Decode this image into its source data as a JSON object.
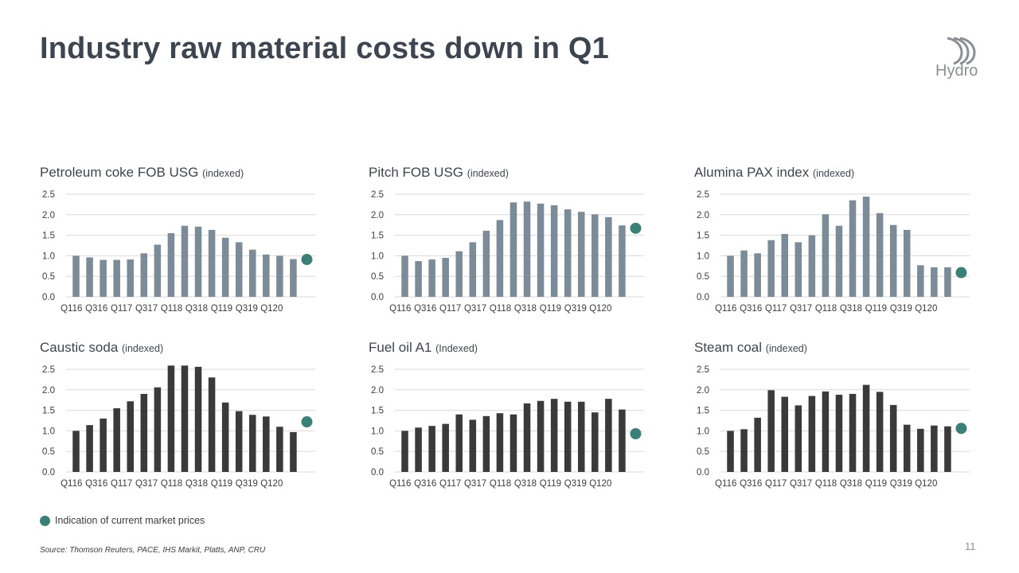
{
  "slide": {
    "title": "Industry raw material costs down in Q1",
    "logo_text": "Hydro",
    "legend_label": "Indication of current market prices",
    "source": "Source: Thomson Reuters, PACE, IHS Markit, Platts, ANP, CRU",
    "page_number": "11"
  },
  "colors": {
    "title": "#3d4550",
    "bar_light": "#7b8b98",
    "bar_dark": "#3a3a3a",
    "marker": "#3b8077",
    "gridline": "#d9d9d9",
    "text": "#3c3c3c"
  },
  "chart_data": [
    {
      "type": "bar",
      "title": "Petroleum coke FOB USG",
      "subtitle": "(indexed)",
      "bar_color": "#7b8b98",
      "x_tick_labels": [
        "Q116",
        "Q316",
        "Q117",
        "Q317",
        "Q118",
        "Q318",
        "Q119",
        "Q319",
        "Q120"
      ],
      "values": [
        1.0,
        0.96,
        0.9,
        0.9,
        0.91,
        1.06,
        1.27,
        1.55,
        1.73,
        1.71,
        1.63,
        1.44,
        1.33,
        1.15,
        1.03,
        1.0,
        0.92
      ],
      "current_marker": 0.91,
      "ylim": [
        0,
        2.5
      ],
      "y_ticks": [
        "0.0",
        "0.5",
        "1.0",
        "1.5",
        "2.0",
        "2.5"
      ],
      "grid": true
    },
    {
      "type": "bar",
      "title": "Pitch FOB USG",
      "subtitle": "(indexed)",
      "bar_color": "#7b8b98",
      "x_tick_labels": [
        "Q116",
        "Q316",
        "Q117",
        "Q317",
        "Q118",
        "Q318",
        "Q119",
        "Q319",
        "Q120"
      ],
      "values": [
        1.0,
        0.87,
        0.91,
        0.95,
        1.11,
        1.33,
        1.61,
        1.87,
        2.3,
        2.32,
        2.27,
        2.23,
        2.13,
        2.07,
        2.01,
        1.94,
        1.74
      ],
      "current_marker": 1.67,
      "ylim": [
        0,
        2.5
      ],
      "y_ticks": [
        "0.0",
        "0.5",
        "1.0",
        "1.5",
        "2.0",
        "2.5"
      ],
      "grid": true
    },
    {
      "type": "bar",
      "title": "Alumina PAX index",
      "subtitle": "(indexed)",
      "bar_color": "#7b8b98",
      "x_tick_labels": [
        "Q116",
        "Q316",
        "Q117",
        "Q317",
        "Q118",
        "Q318",
        "Q119",
        "Q319",
        "Q120"
      ],
      "values": [
        1.0,
        1.13,
        1.06,
        1.38,
        1.53,
        1.33,
        1.5,
        2.01,
        1.73,
        2.35,
        2.44,
        2.04,
        1.75,
        1.63,
        0.77,
        0.72,
        0.72
      ],
      "current_marker": 0.59,
      "ylim": [
        0,
        2.5
      ],
      "y_ticks": [
        "0.0",
        "0.5",
        "1.0",
        "1.5",
        "2.0",
        "2.5"
      ],
      "grid": true
    },
    {
      "type": "bar",
      "title": "Caustic soda",
      "subtitle": "(indexed)",
      "bar_color": "#3a3a3a",
      "x_tick_labels": [
        "Q116",
        "Q316",
        "Q117",
        "Q317",
        "Q118",
        "Q318",
        "Q119",
        "Q319",
        "Q120"
      ],
      "values": [
        1.0,
        1.14,
        1.3,
        1.55,
        1.72,
        1.9,
        2.06,
        2.59,
        2.59,
        2.56,
        2.3,
        1.69,
        1.48,
        1.39,
        1.35,
        1.1,
        0.97
      ],
      "current_marker": 1.22,
      "ylim": [
        0,
        2.5
      ],
      "y_ticks": [
        "0.0",
        "0.5",
        "1.0",
        "1.5",
        "2.0",
        "2.5"
      ],
      "grid": true
    },
    {
      "type": "bar",
      "title": "Fuel oil A1",
      "subtitle": "(Indexed)",
      "bar_color": "#3a3a3a",
      "x_tick_labels": [
        "Q116",
        "Q316",
        "Q117",
        "Q317",
        "Q118",
        "Q318",
        "Q119",
        "Q319",
        "Q120"
      ],
      "values": [
        1.0,
        1.08,
        1.12,
        1.17,
        1.4,
        1.27,
        1.36,
        1.43,
        1.4,
        1.67,
        1.73,
        1.78,
        1.71,
        1.71,
        1.45,
        1.78,
        1.52
      ],
      "current_marker": 0.93,
      "ylim": [
        0,
        2.5
      ],
      "y_ticks": [
        "0.0",
        "0.5",
        "1.0",
        "1.5",
        "2.0",
        "2.5"
      ],
      "grid": true
    },
    {
      "type": "bar",
      "title": "Steam coal",
      "subtitle": "(indexed)",
      "bar_color": "#3a3a3a",
      "x_tick_labels": [
        "Q116",
        "Q316",
        "Q117",
        "Q317",
        "Q118",
        "Q318",
        "Q119",
        "Q319",
        "Q120"
      ],
      "values": [
        1.0,
        1.04,
        1.32,
        1.99,
        1.83,
        1.62,
        1.85,
        1.96,
        1.88,
        1.9,
        2.12,
        1.95,
        1.63,
        1.15,
        1.05,
        1.13,
        1.11
      ],
      "current_marker": 1.06,
      "ylim": [
        0,
        2.5
      ],
      "y_ticks": [
        "0.0",
        "0.5",
        "1.0",
        "1.5",
        "2.0",
        "2.5"
      ],
      "grid": true
    }
  ]
}
